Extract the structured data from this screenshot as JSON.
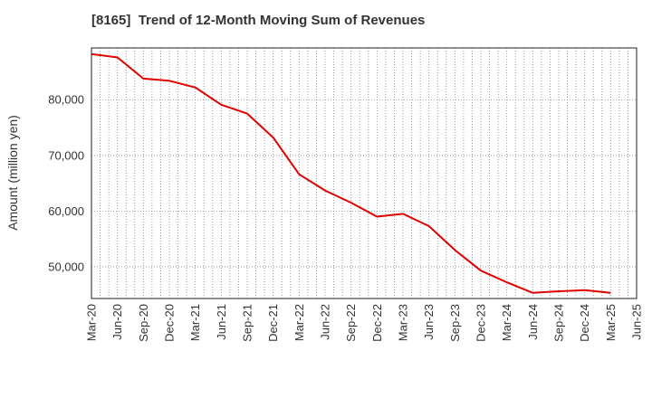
{
  "title": "[8165]  Trend of 12-Month Moving Sum of Revenues",
  "chart_data": {
    "type": "line",
    "title": "[8165]  Trend of 12-Month Moving Sum of Revenues",
    "xlabel": "",
    "ylabel": "Amount (million yen)",
    "categories": [
      "Mar-20",
      "Jun-20",
      "Sep-20",
      "Dec-20",
      "Mar-21",
      "Jun-21",
      "Sep-21",
      "Dec-21",
      "Mar-22",
      "Jun-22",
      "Sep-22",
      "Dec-22",
      "Mar-23",
      "Jun-23",
      "Sep-23",
      "Dec-23",
      "Mar-24",
      "Jun-24",
      "Sep-24",
      "Dec-24",
      "Mar-25",
      "Jun-25"
    ],
    "xticks": [
      "Mar-20",
      "Jun-20",
      "Sep-20",
      "Dec-20",
      "Mar-21",
      "Jun-21",
      "Sep-21",
      "Dec-21",
      "Mar-22",
      "Jun-22",
      "Sep-22",
      "Dec-22",
      "Mar-23",
      "Jun-23",
      "Sep-23",
      "Dec-23",
      "Mar-24",
      "Jun-24",
      "Sep-24",
      "Dec-24",
      "Mar-25",
      "Jun-25"
    ],
    "yticks": [
      "50,000",
      "60,000",
      "70,000",
      "80,000"
    ],
    "ytick_values": [
      50000,
      60000,
      70000,
      80000
    ],
    "ylim": [
      44300,
      89300
    ],
    "grid": true,
    "series": [
      {
        "color": "#e00000",
        "values": [
          88200,
          87600,
          83800,
          83400,
          82200,
          79100,
          77500,
          73200,
          66600,
          63700,
          61500,
          59000,
          59500,
          57300,
          53000,
          49300,
          47200,
          45300,
          45600,
          45800,
          45300,
          null
        ]
      }
    ]
  }
}
